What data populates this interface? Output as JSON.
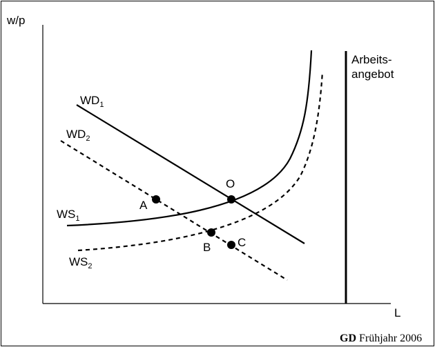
{
  "axes": {
    "y_label": "w/p",
    "x_label": "L"
  },
  "curves": {
    "wd1": {
      "name": "WD",
      "sub": "1"
    },
    "wd2": {
      "name": "WD",
      "sub": "2"
    },
    "ws1": {
      "name": "WS",
      "sub": "1"
    },
    "ws2": {
      "name": "WS",
      "sub": "2"
    }
  },
  "labor_supply": {
    "line1": "Arbeits-",
    "line2": "angebot"
  },
  "points": {
    "o": "O",
    "a": "A",
    "b": "B",
    "c": "C"
  },
  "credit": {
    "bold": "GD",
    "rest": " Frühjahr 2006"
  }
}
